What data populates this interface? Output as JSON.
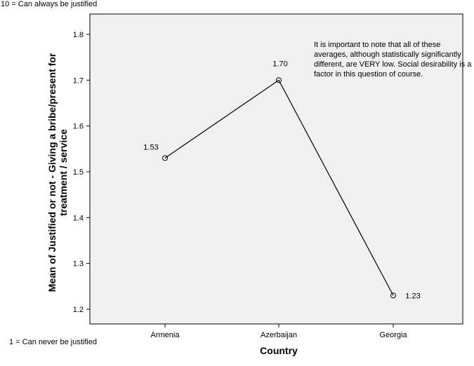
{
  "chart_data": {
    "type": "line",
    "categories": [
      "Armenia",
      "Azerbaijan",
      "Georgia"
    ],
    "series": [
      {
        "values": [
          1.53,
          1.7,
          1.23
        ]
      }
    ],
    "data_labels": [
      "1.53",
      "1.70",
      "1.23"
    ],
    "yticks": [
      "1.2",
      "1.3",
      "1.4",
      "1.5",
      "1.6",
      "1.7",
      "1.8"
    ],
    "ylim": [
      1.18,
      1.84
    ],
    "xlabel": "Country",
    "ylabel": "Mean of Justified or not - Giving a bribe/present for treatment / service",
    "annotation": "It is important to note that all of these averages, although statistically significantly different, are VERY low.  Social desirability is a factor in this question of course.",
    "grid": false,
    "colors": {
      "plot_background": "#f0f0f0",
      "line": "#000000"
    }
  },
  "notes": {
    "top": "10 = Can always be justified",
    "bottom": "1 = Can never be justified"
  }
}
